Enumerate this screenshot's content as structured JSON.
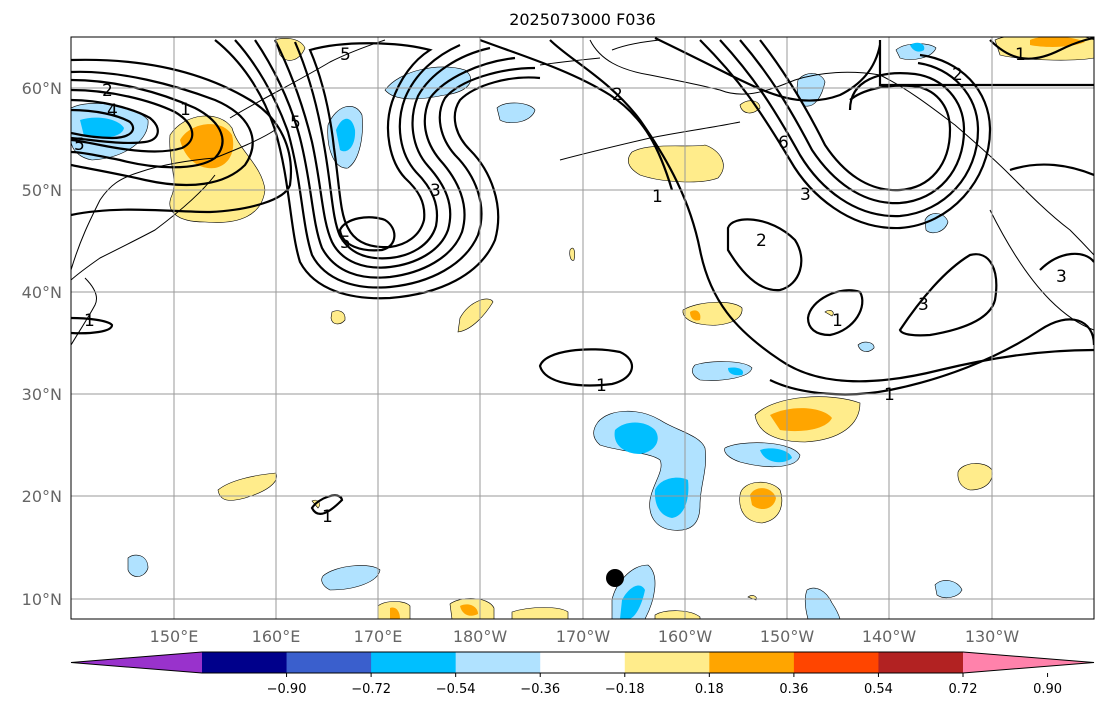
{
  "title": "2025073000 F036",
  "lat_labels": [
    "60°N",
    "50°N",
    "40°N",
    "30°N",
    "20°N",
    "10°N"
  ],
  "lon_labels": [
    "150°E",
    "160°E",
    "170°E",
    "180°W",
    "170°W",
    "160°W",
    "150°W",
    "140°W",
    "130°W"
  ],
  "colorbar": {
    "ticks": [
      "−0.90",
      "−0.72",
      "−0.54",
      "−0.36",
      "−0.18",
      "0.18",
      "0.36",
      "0.54",
      "0.72",
      "0.90"
    ],
    "colors": [
      "#9932cc",
      "#00008b",
      "#3a5fcd",
      "#00bfff",
      "#b0e2ff",
      "#ffffff",
      "#ffec8b",
      "#ffa500",
      "#ff4500",
      "#b22222",
      "#ff82ab"
    ]
  },
  "contour_labels": [
    "1",
    "2",
    "3",
    "4",
    "5",
    "6"
  ],
  "marker": "storm-center-dot"
}
